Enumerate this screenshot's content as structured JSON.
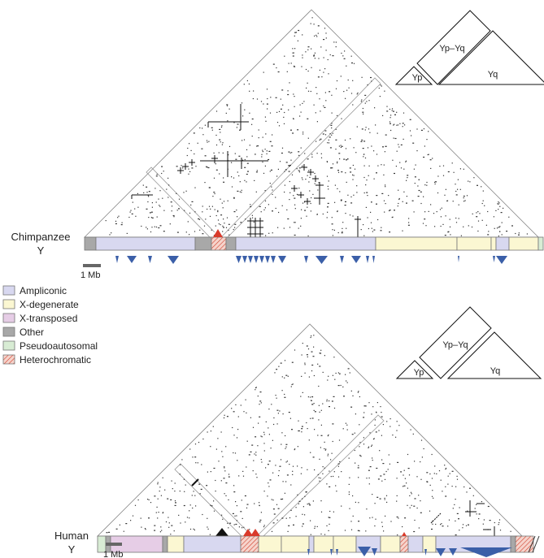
{
  "chimp": {
    "species": "Chimpanzee",
    "chrom": "Y",
    "scale": "1 Mb",
    "key": {
      "left": "Yp",
      "right": "Yq",
      "top": "Yp–Yq"
    }
  },
  "human": {
    "species": "Human",
    "chrom": "Y",
    "scale": "1 Mb",
    "key": {
      "left": "Yp",
      "right": "Yq",
      "top": "Yp–Yq"
    }
  },
  "legend": [
    {
      "label": "Ampliconic",
      "color": "#d8d8f0",
      "pattern": "solid"
    },
    {
      "label": "X-degenerate",
      "color": "#fbf7d2",
      "pattern": "solid"
    },
    {
      "label": "X-transposed",
      "color": "#e6cde6",
      "pattern": "solid"
    },
    {
      "label": "Other",
      "color": "#a8a8a8",
      "pattern": "solid"
    },
    {
      "label": "Pseudoautosomal",
      "color": "#d8ecd4",
      "pattern": "solid"
    },
    {
      "label": "Heterochromatic",
      "color": "#f6d4cc",
      "pattern": "hatch"
    }
  ],
  "colors": {
    "ampliconic": "#d8d8f0",
    "xdegenerate": "#fbf7d2",
    "xtransposed": "#e6cde6",
    "other": "#a8a8a8",
    "pseudo": "#d8ecd4",
    "hetero": "#f6d4cc",
    "palindrome": "#3b5fa8",
    "outline": "#777777"
  }
}
